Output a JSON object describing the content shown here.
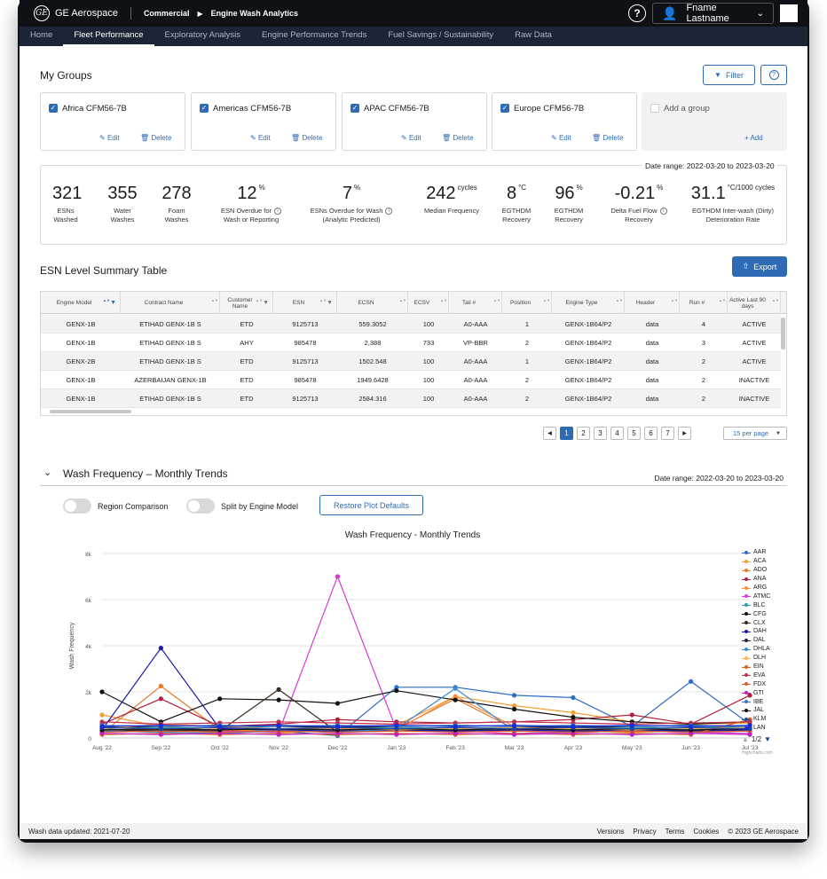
{
  "header": {
    "brand": "GE Aerospace",
    "breadcrumb": [
      "Commercial",
      "Engine Wash Analytics"
    ],
    "user_name": "Fname Lastname"
  },
  "nav": {
    "tabs": [
      "Home",
      "Fleet Performance",
      "Exploratory Analysis",
      "Engine Performance Trends",
      "Fuel Savings / Sustainability",
      "Raw Data"
    ],
    "active": "Fleet Performance"
  },
  "groups": {
    "title": "My Groups",
    "filter_label": "Filter",
    "items": [
      {
        "name": "Africa CFM56-7B"
      },
      {
        "name": "Americas CFM56-7B"
      },
      {
        "name": "APAC CFM56-7B"
      },
      {
        "name": "Europe CFM56-7B"
      }
    ],
    "edit_label": "Edit",
    "delete_label": "Delete",
    "add_group_label": "Add a group",
    "add_label": "Add"
  },
  "stats": {
    "date_range": "Date range: 2022-03-20 to 2023-03-20",
    "items": [
      {
        "value": "321",
        "unit": "",
        "label1": "ESNs",
        "label2": "Washed",
        "info": false
      },
      {
        "value": "355",
        "unit": "",
        "label1": "Water",
        "label2": "Washes",
        "info": false
      },
      {
        "value": "278",
        "unit": "",
        "label1": "Foam",
        "label2": "Washes",
        "info": false
      },
      {
        "value": "12",
        "unit": "%",
        "label1": "ESN Overdue for",
        "label2": "Wash or Reporting",
        "info": true
      },
      {
        "value": "7",
        "unit": "%",
        "label1": "ESNs Overdue for Wash",
        "label2": "(Analytic Predicted)",
        "info": true
      },
      {
        "value": "242",
        "unit": "cycles",
        "label1": "Median Frequency",
        "label2": "",
        "info": false
      },
      {
        "value": "8",
        "unit": "°C",
        "label1": "EGTHDM",
        "label2": "Recovery",
        "info": false
      },
      {
        "value": "96",
        "unit": "%",
        "label1": "EGTHDM",
        "label2": "Recovery",
        "info": false
      },
      {
        "value": "-0.21",
        "unit": "%",
        "label1": "Delta Fuel Flow",
        "label2": "Recovery",
        "info": true
      },
      {
        "value": "31.1",
        "unit": "°C/1000 cycles",
        "label1": "EGTHDM Inter-wash (Dirty)",
        "label2": "Deterioration Rate",
        "info": false
      }
    ]
  },
  "table": {
    "title": "ESN Level Summary Table",
    "export_label": "Export",
    "columns": [
      "Engine Model",
      "Contract Name",
      "Customer Name",
      "ESN",
      "ECSN",
      "ECSV",
      "Tail #",
      "Position",
      "Engine Type",
      "Header",
      "Run #",
      "Active Last 90 days"
    ],
    "rows": [
      [
        "GENX-1B",
        "ETIHAD GENX-1B S",
        "ETD",
        "9125713",
        "559.3052",
        "100",
        "A0-AAA",
        "1",
        "GENX-1B64/P2",
        "data",
        "4",
        "ACTIVE"
      ],
      [
        "GENX-1B",
        "ETIHAD GENX-1B S",
        "AHY",
        "985478",
        "2,388",
        "733",
        "VP-BBR",
        "2",
        "GENX-1B64/P2",
        "data",
        "3",
        "ACTIVE"
      ],
      [
        "GENX-2B",
        "ETIHAD GENX-1B S",
        "ETD",
        "9125713",
        "1502.548",
        "100",
        "A0-AAA",
        "1",
        "GENX-1B64/P2",
        "data",
        "2",
        "ACTIVE"
      ],
      [
        "GENX-1B",
        "AZERBAIJAN GENX-1B",
        "ETD",
        "985478",
        "1949.6428",
        "100",
        "A0-AAA",
        "2",
        "GENX-1B64/P2",
        "data",
        "2",
        "INACTIVE"
      ],
      [
        "GENX-1B",
        "ETIHAD GENX-1B S",
        "ETD",
        "9125713",
        "2584.316",
        "100",
        "A0-AAA",
        "2",
        "GENX-1B64/P2",
        "data",
        "2",
        "INACTIVE"
      ]
    ],
    "pages": [
      "1",
      "2",
      "3",
      "4",
      "5",
      "6",
      "7"
    ],
    "active_page": "1",
    "per_page": "15 per page"
  },
  "wash": {
    "title": "Wash Frequency – Monthly Trends",
    "date_range": "Date range: 2022-03-20 to 2023-03-20",
    "toggle1": "Region Comparison",
    "toggle2": "Split by Engine Model",
    "restore_label": "Restore Plot Defaults",
    "legend_page": "1/2",
    "credit": "Highcharts.com"
  },
  "chart_data": {
    "type": "line",
    "title": "Wash Frequency - Monthly Trends",
    "ylabel": "Wash Frequency",
    "xlabel": "",
    "x": [
      "Aug '22",
      "Sep '22",
      "Oct '22",
      "Nov '22",
      "Dec '22",
      "Jan '23",
      "Feb '23",
      "Mar '23",
      "Apr '23",
      "May '23",
      "Jun '23",
      "Jul '23"
    ],
    "ylim": [
      0,
      8000
    ],
    "yticks": [
      "0",
      "2k",
      "4k",
      "6k",
      "8k"
    ],
    "grid": true,
    "legend": "right",
    "series": [
      {
        "name": "AAR",
        "color": "#2b6cc4",
        "values": [
          400,
          300,
          350,
          300,
          100,
          2200,
          2200,
          1850,
          1750,
          500,
          2450,
          600
        ]
      },
      {
        "name": "ACA",
        "color": "#f0a030",
        "values": [
          1000,
          500,
          300,
          400,
          450,
          550,
          1800,
          1400,
          1100,
          700,
          600,
          650
        ]
      },
      {
        "name": "ADO",
        "color": "#e87a2a",
        "values": [
          200,
          2250,
          350,
          250,
          300,
          400,
          1700,
          400,
          300,
          250,
          300,
          350
        ]
      },
      {
        "name": "ANA",
        "color": "#b0203a",
        "values": [
          600,
          1700,
          500,
          600,
          800,
          700,
          650,
          700,
          800,
          1000,
          600,
          1850
        ]
      },
      {
        "name": "ARG",
        "color": "#ff8c3a",
        "values": [
          300,
          250,
          400,
          350,
          400,
          350,
          1800,
          500,
          350,
          300,
          250,
          300
        ]
      },
      {
        "name": "ATMC",
        "color": "#d63ad6",
        "values": [
          250,
          400,
          300,
          250,
          7000,
          350,
          300,
          200,
          250,
          300,
          250,
          200
        ]
      },
      {
        "name": "BLC",
        "color": "#2a9aa8",
        "values": [
          500,
          450,
          450,
          500,
          500,
          450,
          450,
          450,
          500,
          450,
          450,
          500
        ]
      },
      {
        "name": "CFG",
        "color": "#111111",
        "values": [
          2000,
          700,
          1700,
          1650,
          1500,
          2050,
          1650,
          1250,
          900,
          700,
          600,
          700
        ]
      },
      {
        "name": "CLX",
        "color": "#3a2a1a",
        "values": [
          300,
          350,
          300,
          2100,
          250,
          300,
          350,
          300,
          250,
          300,
          350,
          300
        ]
      },
      {
        "name": "DAH",
        "color": "#1a1aa8",
        "values": [
          350,
          3900,
          400,
          350,
          300,
          350,
          300,
          350,
          300,
          350,
          300,
          350
        ]
      },
      {
        "name": "DAL",
        "color": "#222244",
        "values": [
          450,
          500,
          550,
          500,
          450,
          500,
          550,
          500,
          450,
          500,
          550,
          500
        ]
      },
      {
        "name": "DHLA",
        "color": "#3a8ad6",
        "values": [
          300,
          250,
          200,
          300,
          250,
          400,
          2150,
          300,
          250,
          300,
          250,
          300
        ]
      },
      {
        "name": "DLH",
        "color": "#ffb050",
        "values": [
          400,
          600,
          500,
          400,
          450,
          350,
          400,
          450,
          400,
          350,
          400,
          450
        ]
      },
      {
        "name": "EIN",
        "color": "#e0601a",
        "values": [
          150,
          200,
          150,
          200,
          150,
          200,
          150,
          200,
          150,
          200,
          150,
          800
        ]
      },
      {
        "name": "EVA",
        "color": "#c0304a",
        "values": [
          700,
          600,
          650,
          700,
          650,
          600,
          650,
          700,
          650,
          600,
          650,
          700
        ]
      },
      {
        "name": "FDX",
        "color": "#e05a2a",
        "values": [
          250,
          300,
          250,
          300,
          250,
          300,
          250,
          300,
          250,
          300,
          250,
          300
        ]
      },
      {
        "name": "GTI",
        "color": "#c020c0",
        "values": [
          200,
          150,
          200,
          150,
          200,
          150,
          200,
          150,
          200,
          150,
          200,
          150
        ]
      },
      {
        "name": "IBE",
        "color": "#3a7ac0",
        "values": [
          550,
          500,
          550,
          500,
          550,
          500,
          550,
          500,
          550,
          500,
          550,
          500
        ]
      },
      {
        "name": "JAL",
        "color": "#111111",
        "values": [
          350,
          400,
          350,
          400,
          350,
          400,
          350,
          400,
          350,
          400,
          350,
          400
        ]
      },
      {
        "name": "KLM",
        "color": "#1a4aa0",
        "values": [
          450,
          400,
          450,
          400,
          450,
          400,
          450,
          400,
          450,
          400,
          450,
          400
        ]
      },
      {
        "name": "LAN",
        "color": "#1a2ad6",
        "values": [
          500,
          550,
          500,
          550,
          500,
          550,
          500,
          550,
          500,
          550,
          500,
          550
        ]
      }
    ]
  },
  "footer": {
    "updated": "Wash data updated: 2021-07-20",
    "links": [
      "Versions",
      "Privacy",
      "Terms",
      "Cookies"
    ],
    "copyright": "© 2023 GE Aerospace"
  }
}
